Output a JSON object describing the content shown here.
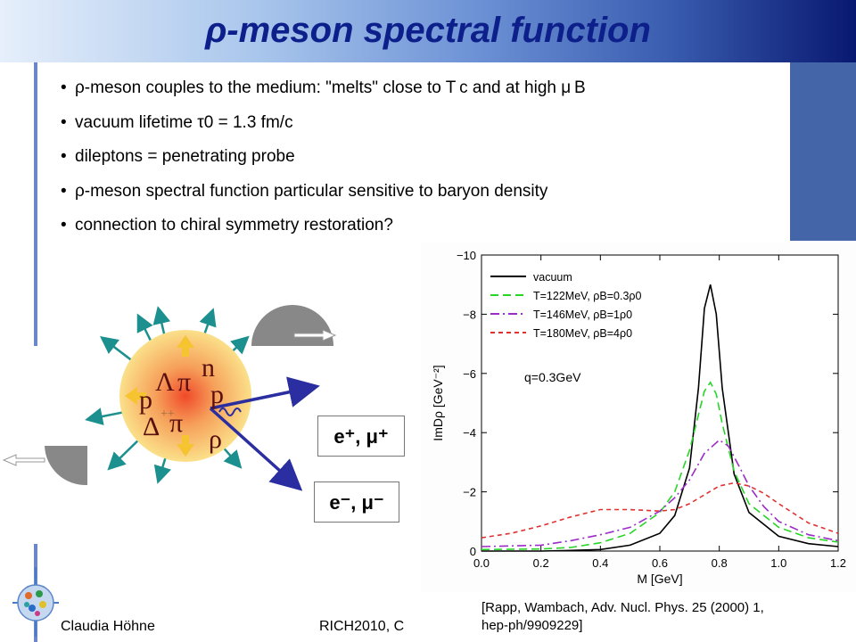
{
  "title": "ρ-meson spectral function",
  "bullets": [
    "ρ-meson couples to the medium: \"melts\" close to T c and at high μ B",
    "vacuum lifetime τ0 = 1.3 fm/c",
    "dileptons  = penetrating probe",
    "ρ-meson spectral function particular sensitive to baryon density",
    "connection to chiral symmetry restoration?"
  ],
  "diagram": {
    "particles": {
      "Lambda": "Λ",
      "pi1": "π",
      "n": "n",
      "p_left": "p",
      "p_right": "p",
      "delta_sup": "++",
      "Delta": "Δ",
      "pi2": "π",
      "rho": "ρ"
    },
    "lepton_plus": "e⁺, μ⁺",
    "lepton_minus": "e⁻, μ⁻"
  },
  "chart_data": {
    "type": "line",
    "xlabel": "M [GeV]",
    "ylabel": "ImDρ [GeV⁻²]",
    "xlim": [
      0.0,
      1.2
    ],
    "ylim": [
      0,
      -10
    ],
    "x_ticks": [
      "0.0",
      "0.2",
      "0.4",
      "0.6",
      "0.8",
      "1.0",
      "1.2"
    ],
    "y_ticks": [
      "0",
      "−2",
      "−4",
      "−6",
      "−8",
      "−10"
    ],
    "annotation": "q=0.3GeV",
    "legend_position": "top-left",
    "series": [
      {
        "name": "vacuum",
        "color": "#000000",
        "dash": "solid",
        "x": [
          0.0,
          0.2,
          0.3,
          0.4,
          0.5,
          0.6,
          0.65,
          0.7,
          0.73,
          0.75,
          0.77,
          0.79,
          0.81,
          0.85,
          0.9,
          1.0,
          1.1,
          1.2
        ],
        "y": [
          0,
          0,
          -0.02,
          -0.05,
          -0.2,
          -0.6,
          -1.2,
          -2.8,
          -5.5,
          -8.2,
          -9.0,
          -8.0,
          -5.5,
          -2.6,
          -1.3,
          -0.5,
          -0.25,
          -0.15
        ]
      },
      {
        "name": "T=122MeV, ρB=0.3ρ0",
        "color": "#27d627",
        "dash": "9,5",
        "x": [
          0.0,
          0.2,
          0.3,
          0.4,
          0.5,
          0.6,
          0.65,
          0.7,
          0.73,
          0.75,
          0.77,
          0.79,
          0.81,
          0.85,
          0.9,
          1.0,
          1.1,
          1.2
        ],
        "y": [
          -0.05,
          -0.07,
          -0.12,
          -0.28,
          -0.6,
          -1.3,
          -2.0,
          -3.4,
          -4.6,
          -5.4,
          -5.7,
          -5.3,
          -4.3,
          -2.7,
          -1.6,
          -0.8,
          -0.45,
          -0.3
        ]
      },
      {
        "name": "T=146MeV, ρB=1ρ0",
        "color": "#9a2cc8",
        "dash": "10,4,2,4",
        "x": [
          0.0,
          0.2,
          0.3,
          0.4,
          0.5,
          0.6,
          0.65,
          0.7,
          0.75,
          0.8,
          0.83,
          0.87,
          0.9,
          0.95,
          1.0,
          1.1,
          1.2
        ],
        "y": [
          -0.15,
          -0.2,
          -0.35,
          -0.55,
          -0.8,
          -1.35,
          -1.8,
          -2.4,
          -3.3,
          -3.75,
          -3.55,
          -2.8,
          -2.2,
          -1.5,
          -1.0,
          -0.55,
          -0.35
        ]
      },
      {
        "name": "T=180MeV, ρB=4ρ0",
        "color": "#e23030",
        "dash": "5,4",
        "x": [
          0.0,
          0.1,
          0.2,
          0.3,
          0.4,
          0.5,
          0.6,
          0.65,
          0.7,
          0.75,
          0.8,
          0.85,
          0.9,
          0.95,
          1.0,
          1.1,
          1.2
        ],
        "y": [
          -0.45,
          -0.6,
          -0.85,
          -1.15,
          -1.4,
          -1.4,
          -1.35,
          -1.4,
          -1.6,
          -1.9,
          -2.2,
          -2.3,
          -2.2,
          -1.95,
          -1.6,
          -0.95,
          -0.6
        ]
      }
    ]
  },
  "citation": [
    "[Rapp, Wambach, Adv. Nucl. Phys. 25 (2000) 1,",
    "hep-ph/9909229]"
  ],
  "footer": {
    "author": "Claudia Höhne",
    "conference": "RICH2010, C"
  }
}
